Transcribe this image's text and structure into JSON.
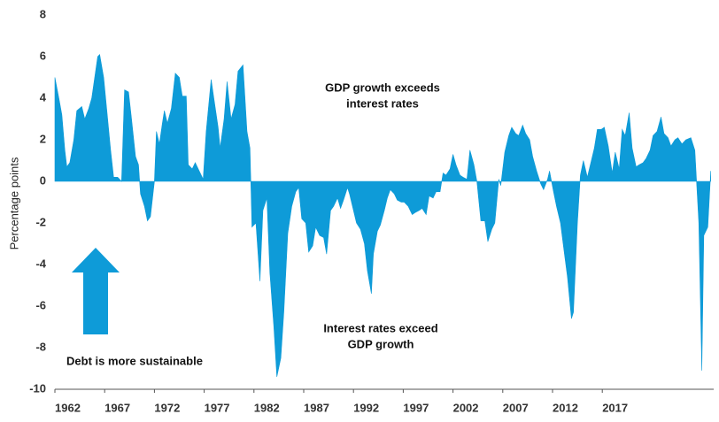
{
  "chart_data": {
    "type": "area",
    "y_label": "Percentage points",
    "color": "#0e9bd8",
    "annotations": [
      {
        "lines": [
          "GDP growth exceeds",
          "interest rates"
        ]
      },
      {
        "lines": [
          "Interest rates exceed",
          "GDP growth"
        ]
      },
      {
        "lines": [
          "Debt is more sustainable"
        ]
      }
    ],
    "xlim": [
      1962,
      2028.2
    ],
    "xticks": [
      1962,
      1967,
      1972,
      1977,
      1982,
      1987,
      1992,
      1997,
      2002,
      2007,
      2012,
      2017
    ],
    "ylim": [
      -10,
      8
    ],
    "yticks": [
      -10,
      -8,
      -6,
      -4,
      -2,
      0,
      2,
      4,
      6,
      8
    ],
    "x": [
      1962.0,
      1962.4,
      1962.7,
      1963.0,
      1963.2,
      1963.5,
      1963.9,
      1964.2,
      1964.7,
      1965.0,
      1965.4,
      1965.7,
      1966.3,
      1966.5,
      1966.9,
      1967.2,
      1967.6,
      1967.9,
      1968.3,
      1968.7,
      1969.0,
      1969.4,
      1969.7,
      1970.1,
      1970.4,
      1970.6,
      1971.0,
      1971.3,
      1971.6,
      1972.0,
      1972.2,
      1972.5,
      1972.8,
      1973.0,
      1973.3,
      1973.7,
      1974.1,
      1974.5,
      1974.8,
      1975.2,
      1975.4,
      1975.8,
      1976.1,
      1976.5,
      1976.9,
      1977.2,
      1977.7,
      1978.0,
      1978.4,
      1978.6,
      1979.0,
      1979.3,
      1979.7,
      1980.1,
      1980.4,
      1980.9,
      1981.3,
      1981.6,
      1981.8,
      1982.2,
      1982.6,
      1982.9,
      1983.3,
      1983.6,
      1984.0,
      1984.3,
      1984.7,
      1985.0,
      1985.4,
      1985.8,
      1986.2,
      1986.5,
      1986.8,
      1987.2,
      1987.5,
      1987.9,
      1988.2,
      1988.6,
      1989.0,
      1989.3,
      1989.7,
      1990.0,
      1990.4,
      1990.7,
      1991.0,
      1991.4,
      1991.6,
      1992.0,
      1992.3,
      1992.7,
      1993.1,
      1993.4,
      1993.8,
      1994.0,
      1994.4,
      1994.7,
      1995.1,
      1995.4,
      1995.7,
      1996.1,
      1996.4,
      1996.8,
      1997.1,
      1997.5,
      1997.9,
      1998.2,
      1998.6,
      1998.9,
      1999.3,
      1999.6,
      2000.0,
      2000.3,
      2000.7,
      2001.0,
      2001.3,
      2001.7,
      2002.0,
      2002.3,
      2002.7,
      2003.0,
      2003.4,
      2003.7,
      2004.1,
      2004.4,
      2004.8,
      2005.2,
      2005.5,
      2005.9,
      2006.2,
      2006.6,
      2006.8,
      2007.2,
      2007.6,
      2007.9,
      2008.3,
      2008.6,
      2009.0,
      2009.3,
      2009.7,
      2010.0,
      2010.4,
      2010.8,
      2011.1,
      2011.5,
      2011.7,
      2012.1,
      2012.4,
      2012.8,
      2013.2,
      2013.5,
      2013.9,
      2014.1,
      2014.5,
      2014.8,
      2015.1,
      2015.5,
      2015.8,
      2016.2,
      2016.5,
      2016.9,
      2017.2,
      2017.6,
      2018.0,
      2018.3,
      2018.7,
      2019.0,
      2019.3,
      2019.7,
      2020.0,
      2020.4,
      2020.7,
      2021.1,
      2021.4,
      2021.8,
      2022.1,
      2022.5,
      2022.9,
      2023.2,
      2023.6,
      2023.9,
      2024.3,
      2024.6,
      2025.0,
      2025.4,
      2025.9,
      2026.3,
      2026.7,
      2027.0,
      2027.2,
      2027.6,
      2027.9
    ],
    "values": [
      5.0,
      4.0,
      3.2,
      1.5,
      0.7,
      0.9,
      2.0,
      3.4,
      3.6,
      3.0,
      3.5,
      4.0,
      6.0,
      6.1,
      5.0,
      3.5,
      1.5,
      0.2,
      0.2,
      0,
      4.4,
      4.3,
      3.0,
      1.2,
      0.8,
      -0.6,
      -1.2,
      -1.9,
      -1.7,
      0,
      2.4,
      1.8,
      2.8,
      3.4,
      2.8,
      3.5,
      5.2,
      5.0,
      4.1,
      4.1,
      0.8,
      0.6,
      0.9,
      0.5,
      0.1,
      2.4,
      4.9,
      3.9,
      2.6,
      1.6,
      3.0,
      4.8,
      3.0,
      3.7,
      5.3,
      5.6,
      2.4,
      1.6,
      -2.2,
      -2.0,
      -4.8,
      -1.4,
      -0.8,
      -4.4,
      -7.0,
      -9.4,
      -8.5,
      -6.3,
      -2.5,
      -1.2,
      -0.5,
      -0.3,
      -1.8,
      -2.0,
      -3.4,
      -3.1,
      -2.2,
      -2.6,
      -2.7,
      -3.5,
      -1.4,
      -1.2,
      -0.8,
      -1.3,
      -0.9,
      -0.3,
      -0.6,
      -1.4,
      -2.0,
      -2.3,
      -3.0,
      -4.3,
      -5.4,
      -3.5,
      -2.4,
      -2.1,
      -1.4,
      -0.8,
      -0.4,
      -0.6,
      -0.9,
      -1.0,
      -1.0,
      -1.2,
      -1.6,
      -1.5,
      -1.4,
      -1.3,
      -1.6,
      -0.7,
      -0.8,
      -0.5,
      -0.5,
      0.4,
      0.3,
      0.6,
      1.3,
      0.8,
      0.3,
      0.2,
      0.1,
      1.5,
      0.8,
      0,
      -1.9,
      -1.9,
      -2.9,
      -2.3,
      -2.0,
      0.1,
      -0.2,
      1.4,
      2.2,
      2.6,
      2.3,
      2.2,
      2.7,
      2.3,
      2.0,
      1.2,
      0.5,
      -0.1,
      -0.4,
      0.1,
      0.5,
      -0.5,
      -1.2,
      -2.0,
      -3.5,
      -4.6,
      -6.6,
      -6.3,
      -2.0,
      0.3,
      1.0,
      0.2,
      0.8,
      1.6,
      2.5,
      2.5,
      2.6,
      1.7,
      0.4,
      1.4,
      0.6,
      2.5,
      2.2,
      3.3,
      1.6,
      0.7,
      0.8,
      0.9,
      1.1,
      1.5,
      2.2,
      2.4,
      3.1,
      2.3,
      2.1,
      1.7,
      2.0,
      2.1,
      1.8,
      2.0,
      2.1,
      1.5,
      -2.0,
      -9.1,
      -2.6,
      -2.2,
      0.5
    ]
  }
}
